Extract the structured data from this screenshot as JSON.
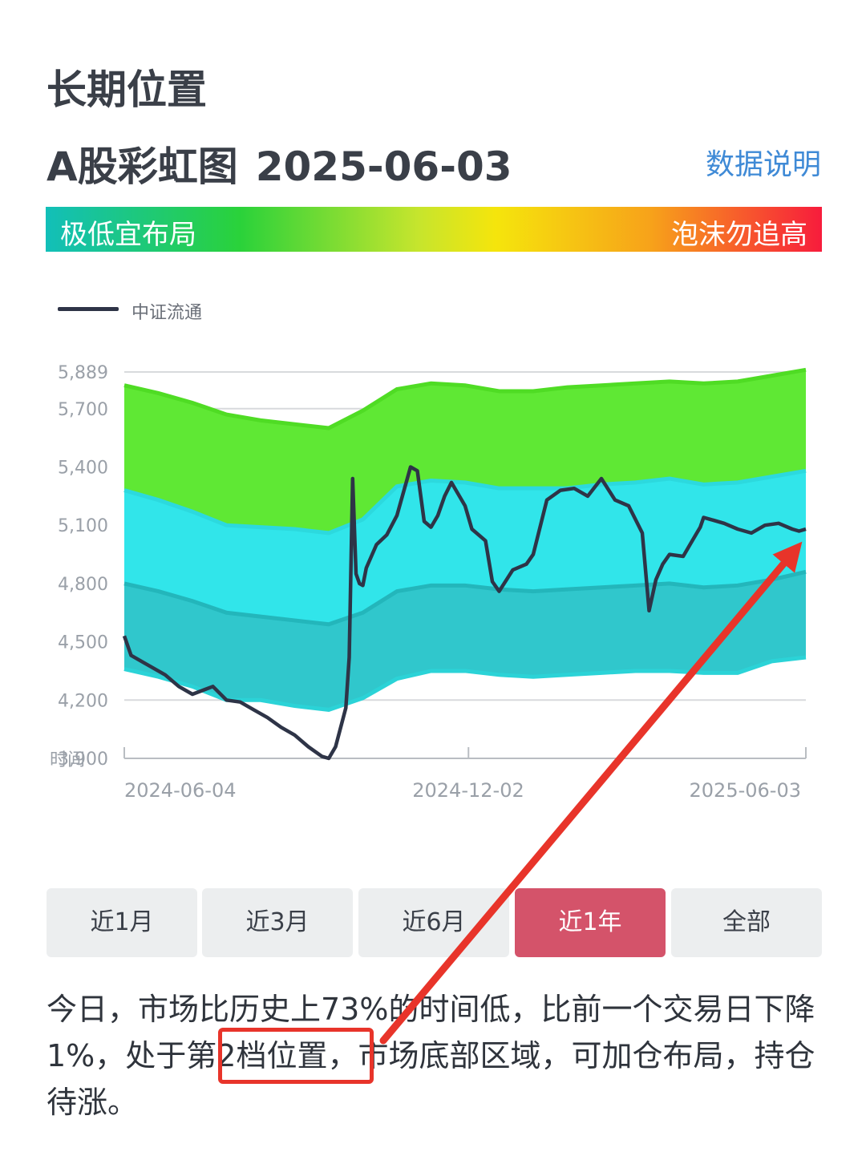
{
  "header": {
    "section_title": "长期位置",
    "chart_title": "A股彩虹图",
    "chart_date": "2025-06-03",
    "data_link": "数据说明"
  },
  "gradient_bar": {
    "left_label": "极低宜布局",
    "right_label": "泡沫勿追高"
  },
  "range_buttons": [
    {
      "label": "近1月",
      "active": false
    },
    {
      "label": "近3月",
      "active": false
    },
    {
      "label": "近6月",
      "active": false
    },
    {
      "label": "近1年",
      "active": true
    },
    {
      "label": "全部",
      "active": false
    }
  ],
  "summary": {
    "text": "今日，市场比历史上73%的时间低，比前一个交易日下降1%，处于第2档位置，市场底部区域，可加仓布局，持仓待涨。"
  },
  "colors": {
    "line": "#2e3447",
    "band_top": "#5fe834",
    "band_upper_mid": "#31e5ea",
    "band_lower_mid": "#30c7cc",
    "grid": "#d8dadd",
    "active_button": "#d4536a",
    "annotation": "#e8342a"
  },
  "chart_data": {
    "type": "line",
    "title": "",
    "legend": [
      "中证流通"
    ],
    "legend_position": "top-left",
    "xlabel": "时间",
    "ylabel": "",
    "x_tick_labels": [
      "2024-06-04",
      "2024-12-02",
      "2025-06-03"
    ],
    "y_ticks": [
      3900,
      4200,
      4500,
      4800,
      5100,
      5400,
      5700,
      5889
    ],
    "y_tick_labels": [
      "3,900",
      "4,200",
      "4,500",
      "4,800",
      "5,100",
      "5,400",
      "5,700",
      "5,889"
    ],
    "ylim": [
      3900,
      5889
    ],
    "grid": true,
    "bands": {
      "x": [
        0,
        0.05,
        0.1,
        0.15,
        0.2,
        0.25,
        0.3,
        0.35,
        0.4,
        0.45,
        0.5,
        0.55,
        0.6,
        0.65,
        0.7,
        0.75,
        0.8,
        0.85,
        0.9,
        0.95,
        1.0
      ],
      "top": [
        5820,
        5780,
        5730,
        5670,
        5640,
        5620,
        5600,
        5690,
        5800,
        5830,
        5820,
        5790,
        5790,
        5810,
        5820,
        5830,
        5840,
        5830,
        5840,
        5870,
        5900
      ],
      "b1": [
        5280,
        5230,
        5170,
        5100,
        5090,
        5080,
        5060,
        5130,
        5300,
        5330,
        5320,
        5290,
        5290,
        5290,
        5310,
        5320,
        5340,
        5310,
        5320,
        5350,
        5380
      ],
      "b2": [
        4800,
        4760,
        4710,
        4650,
        4630,
        4610,
        4590,
        4650,
        4760,
        4790,
        4790,
        4770,
        4760,
        4770,
        4780,
        4790,
        4800,
        4780,
        4790,
        4820,
        4860
      ],
      "bottom": [
        4360,
        4320,
        4270,
        4200,
        4200,
        4170,
        4150,
        4210,
        4310,
        4350,
        4350,
        4330,
        4320,
        4330,
        4340,
        4350,
        4350,
        4340,
        4340,
        4400,
        4420
      ]
    },
    "series": [
      {
        "name": "中证流通",
        "x": [
          0,
          0.01,
          0.03,
          0.06,
          0.08,
          0.1,
          0.13,
          0.15,
          0.17,
          0.19,
          0.21,
          0.23,
          0.25,
          0.27,
          0.29,
          0.3,
          0.31,
          0.325,
          0.33,
          0.335,
          0.34,
          0.345,
          0.35,
          0.355,
          0.37,
          0.385,
          0.4,
          0.42,
          0.43,
          0.44,
          0.45,
          0.46,
          0.47,
          0.48,
          0.5,
          0.51,
          0.53,
          0.54,
          0.55,
          0.57,
          0.59,
          0.6,
          0.62,
          0.64,
          0.66,
          0.68,
          0.7,
          0.72,
          0.74,
          0.76,
          0.77,
          0.78,
          0.79,
          0.8,
          0.82,
          0.83,
          0.84,
          0.845,
          0.85,
          0.86,
          0.88,
          0.9,
          0.92,
          0.94,
          0.96,
          0.98,
          0.99,
          1.0
        ],
        "y": [
          4530,
          4430,
          4390,
          4330,
          4270,
          4230,
          4270,
          4200,
          4190,
          4150,
          4110,
          4060,
          4020,
          3960,
          3910,
          3900,
          3960,
          4160,
          4420,
          5340,
          4850,
          4800,
          4790,
          4880,
          5000,
          5050,
          5150,
          5400,
          5380,
          5120,
          5090,
          5150,
          5250,
          5320,
          5200,
          5080,
          5020,
          4810,
          4760,
          4870,
          4900,
          4950,
          5230,
          5280,
          5290,
          5250,
          5340,
          5230,
          5200,
          5060,
          4660,
          4820,
          4900,
          4950,
          4940,
          5000,
          5060,
          5090,
          5140,
          5130,
          5110,
          5080,
          5060,
          5100,
          5110,
          5080,
          5070,
          5080
        ]
      }
    ]
  }
}
